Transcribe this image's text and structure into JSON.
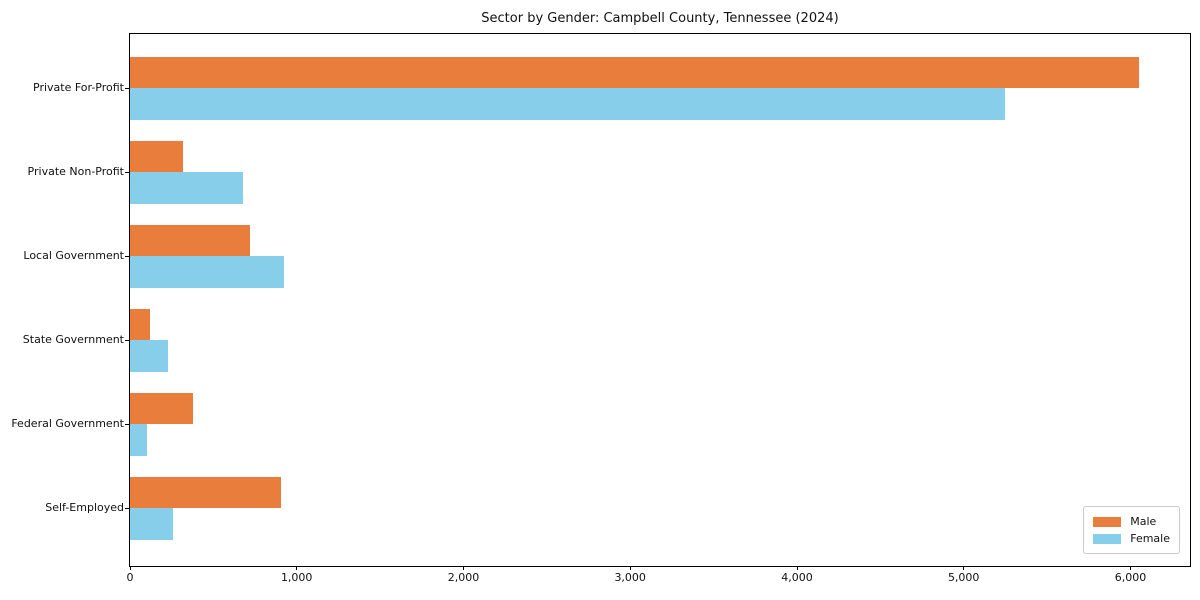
{
  "chart_data": {
    "type": "bar",
    "orientation": "horizontal",
    "title": "Sector by Gender: Campbell County, Tennessee (2024)",
    "categories": [
      "Private For-Profit",
      "Private Non-Profit",
      "Local Government",
      "State Government",
      "Federal Government",
      "Self-Employed"
    ],
    "series": [
      {
        "name": "Male",
        "color": "#e87d3c",
        "values": [
          6050,
          315,
          720,
          120,
          375,
          905
        ]
      },
      {
        "name": "Female",
        "color": "#87ceeb",
        "values": [
          5250,
          675,
          925,
          230,
          100,
          260
        ]
      }
    ],
    "xlabel": "",
    "ylabel": "",
    "xlim": [
      0,
      6357
    ],
    "x_ticks": {
      "values": [
        0,
        1000,
        2000,
        3000,
        4000,
        5000,
        6000
      ],
      "labels": [
        "0",
        "1,000",
        "2,000",
        "3,000",
        "4,000",
        "5,000",
        "6,000"
      ]
    },
    "legend": {
      "position": "lower right",
      "entries": [
        "Male",
        "Female"
      ]
    },
    "grid": false,
    "colors": {
      "spine": "#000000",
      "text": "#111111",
      "background": "#ffffff"
    }
  }
}
